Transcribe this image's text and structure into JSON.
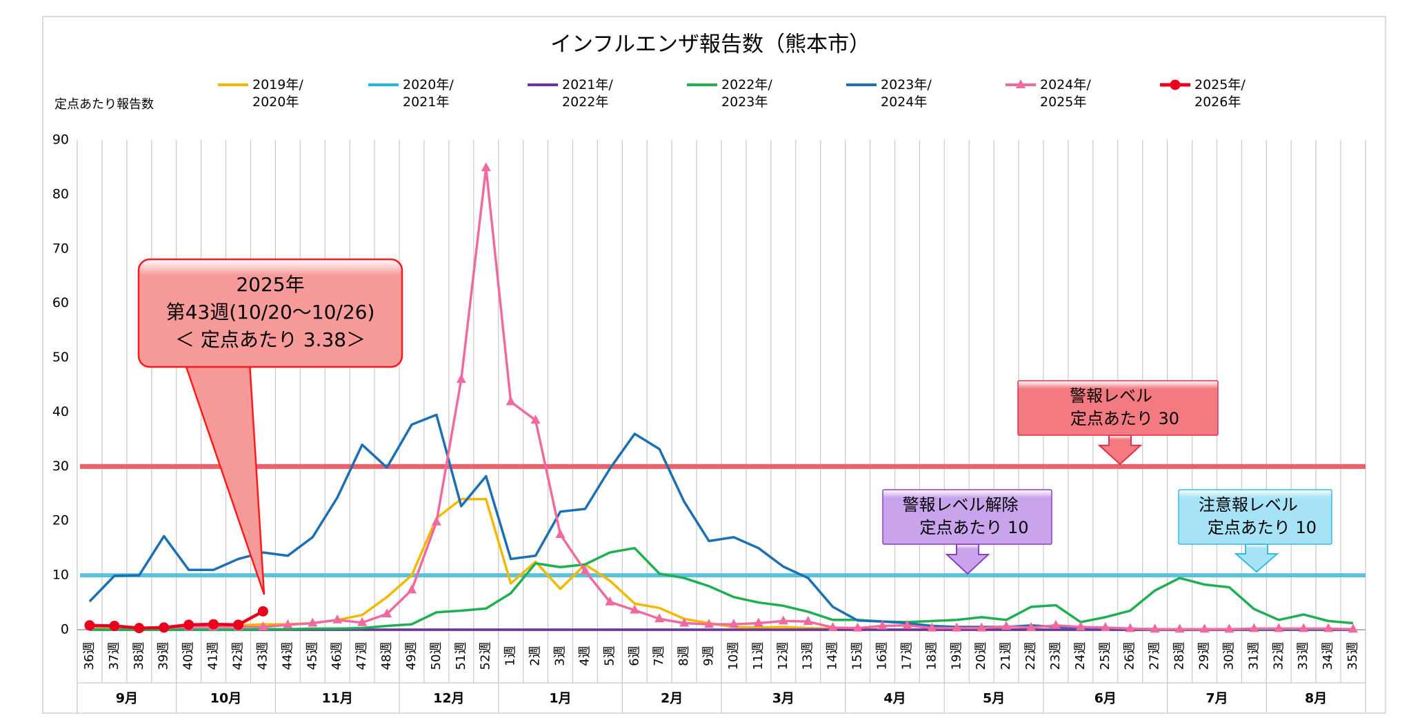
{
  "chart_data": {
    "type": "line",
    "title": "インフルエンザ報告数（熊本市）",
    "y_label": "定点あたり報告数",
    "categories": [
      "36週",
      "37週",
      "38週",
      "39週",
      "40週",
      "41週",
      "42週",
      "43週",
      "44週",
      "45週",
      "46週",
      "47週",
      "48週",
      "49週",
      "50週",
      "51週",
      "52週",
      "1週",
      "2週",
      "3週",
      "4週",
      "5週",
      "6週",
      "7週",
      "8週",
      "9週",
      "10週",
      "11週",
      "12週",
      "13週",
      "14週",
      "15週",
      "16週",
      "17週",
      "18週",
      "19週",
      "20週",
      "21週",
      "22週",
      "23週",
      "24週",
      "25週",
      "26週",
      "27週",
      "28週",
      "29週",
      "30週",
      "31週",
      "32週",
      "33週",
      "34週",
      "35週"
    ],
    "month_groups": [
      {
        "label": "9月",
        "weeks": 4
      },
      {
        "label": "10月",
        "weeks": 4
      },
      {
        "label": "11月",
        "weeks": 5
      },
      {
        "label": "12月",
        "weeks": 4
      },
      {
        "label": "1月",
        "weeks": 5
      },
      {
        "label": "2月",
        "weeks": 4
      },
      {
        "label": "3月",
        "weeks": 5
      },
      {
        "label": "4月",
        "weeks": 4
      },
      {
        "label": "5月",
        "weeks": 4
      },
      {
        "label": "6月",
        "weeks": 5
      },
      {
        "label": "7月",
        "weeks": 4
      },
      {
        "label": "8月",
        "weeks": 4
      }
    ],
    "ylim": [
      0,
      90
    ],
    "yticks": [
      0,
      10,
      20,
      30,
      40,
      50,
      60,
      70,
      80,
      90
    ],
    "series": [
      {
        "name": "2019年/2020年",
        "color": "#f5b800",
        "marker": "none",
        "values": [
          0.3,
          0.3,
          0.2,
          0.3,
          0.5,
          0.6,
          0.8,
          1.0,
          1.0,
          1.2,
          1.8,
          2.7,
          6.0,
          10.0,
          20.5,
          24.0,
          24.0,
          8.5,
          12.5,
          7.5,
          12.0,
          9.0,
          4.8,
          4.0,
          2.0,
          1.2,
          0.5,
          0.4,
          0.5,
          0.3,
          0.2,
          0,
          0,
          0,
          0,
          0,
          0,
          0,
          0,
          0,
          0,
          0,
          0,
          0,
          0,
          0,
          0,
          0,
          0,
          0,
          0,
          0
        ]
      },
      {
        "name": "2020年/2021年",
        "color": "#1fb6e8",
        "marker": "none",
        "values": [
          0,
          0,
          0,
          0,
          0,
          0,
          0,
          0,
          0,
          0,
          0,
          0,
          0,
          0,
          0,
          0,
          0,
          0,
          0,
          0,
          0,
          0,
          0,
          0,
          0,
          0,
          0,
          0,
          0,
          0,
          0,
          0,
          0,
          0,
          0,
          0,
          0,
          0,
          0,
          0,
          0,
          0,
          0,
          0,
          0,
          0,
          0,
          0,
          0,
          0,
          0,
          0
        ]
      },
      {
        "name": "2021年/2022年",
        "color": "#7030a0",
        "marker": "none",
        "values": [
          0,
          0,
          0,
          0,
          0,
          0,
          0,
          0,
          0,
          0,
          0,
          0,
          0,
          0,
          0,
          0,
          0,
          0,
          0,
          0,
          0,
          0,
          0,
          0,
          0,
          0,
          0,
          0,
          0,
          0,
          0,
          0,
          0,
          0,
          0,
          0,
          0,
          0,
          0,
          0,
          0,
          0,
          0,
          0,
          0,
          0,
          0,
          0,
          0,
          0,
          0,
          0
        ]
      },
      {
        "name": "2022年/2023年",
        "color": "#1eb050",
        "marker": "none",
        "values": [
          0,
          0,
          0,
          0,
          0,
          0,
          0,
          0.1,
          0.1,
          0.2,
          0.2,
          0.3,
          0.7,
          1.0,
          3.2,
          3.5,
          3.9,
          6.7,
          12.2,
          11.5,
          12.0,
          14.2,
          15.0,
          10.3,
          9.5,
          8.0,
          6.0,
          5.0,
          4.4,
          3.3,
          1.8,
          1.8,
          1.5,
          1.4,
          1.6,
          1.8,
          2.3,
          1.8,
          4.2,
          4.5,
          1.4,
          2.3,
          3.5,
          7.2,
          9.5,
          8.3,
          7.8,
          3.8,
          1.8,
          2.8,
          1.6,
          1.2
        ]
      },
      {
        "name": "2023年/2024年",
        "color": "#1a6fb5",
        "marker": "none",
        "values": [
          5.2,
          9.9,
          10.0,
          17.2,
          11.0,
          11.0,
          13.0,
          14.2,
          13.6,
          17.0,
          24.3,
          34.0,
          29.8,
          37.7,
          39.5,
          22.7,
          28.2,
          13.0,
          13.6,
          21.7,
          22.2,
          29.6,
          36.0,
          33.2,
          23.5,
          16.3,
          17.0,
          15.0,
          11.6,
          9.5,
          4.2,
          1.7,
          1.5,
          1.2,
          0.7,
          0.5,
          0.5,
          0.5,
          0.8,
          0.5,
          0.4,
          0.3,
          0.2,
          0.1,
          0.1,
          0.1,
          0.1,
          0.1,
          0.1,
          0.1,
          0.1,
          0.1
        ]
      },
      {
        "name": "2024年/2025年",
        "color": "#f06aa0",
        "marker": "triangle",
        "values": [
          0.6,
          0.6,
          0.3,
          0.4,
          0.5,
          0.5,
          0.5,
          0.5,
          0.9,
          1.2,
          1.8,
          1.3,
          2.9,
          7.3,
          19.8,
          46.0,
          84.9,
          41.9,
          38.5,
          17.5,
          10.8,
          5.1,
          3.6,
          2.0,
          1.2,
          1.0,
          1.0,
          1.2,
          1.6,
          1.5,
          0.4,
          0.3,
          0.7,
          0.8,
          0.3,
          0.3,
          0.3,
          0.6,
          0.4,
          0.8,
          0.5,
          0.4,
          0.2,
          0.1,
          0.1,
          0.1,
          0.1,
          0.2,
          0.2,
          0.2,
          0.2,
          0.1
        ]
      },
      {
        "name": "2025年/2026年",
        "color": "#e8001c",
        "marker": "circle",
        "values": [
          0.8,
          0.7,
          0.3,
          0.4,
          0.9,
          1.0,
          0.9,
          3.38,
          null,
          null,
          null,
          null,
          null,
          null,
          null,
          null,
          null,
          null,
          null,
          null,
          null,
          null,
          null,
          null,
          null,
          null,
          null,
          null,
          null,
          null,
          null,
          null,
          null,
          null,
          null,
          null,
          null,
          null,
          null,
          null,
          null,
          null,
          null,
          null,
          null,
          null,
          null,
          null,
          null,
          null,
          null,
          null
        ]
      }
    ],
    "reference_lines": [
      {
        "value": 30,
        "color": "#ef5f6a"
      },
      {
        "value": 10,
        "color": "#5bc2dc"
      }
    ],
    "annotations": [
      {
        "lines": [
          "2025年",
          "第43週(10/20～10/26)",
          "＜ 定点あたり 3.38＞"
        ],
        "color": "#ff1a1a",
        "fill": "#f79a9a"
      },
      {
        "lines": [
          "警報レベル",
          "定点あたり 30"
        ],
        "color": "#e0304a",
        "fill": "#f47a82"
      },
      {
        "lines": [
          "警報レベル解除",
          "定点あたり 10"
        ],
        "color": "#8a3fbf",
        "fill": "#c9a4ec"
      },
      {
        "lines": [
          "注意報レベル",
          "定点あたり 10"
        ],
        "color": "#3bb7e0",
        "fill": "#a6e3f6"
      }
    ]
  }
}
